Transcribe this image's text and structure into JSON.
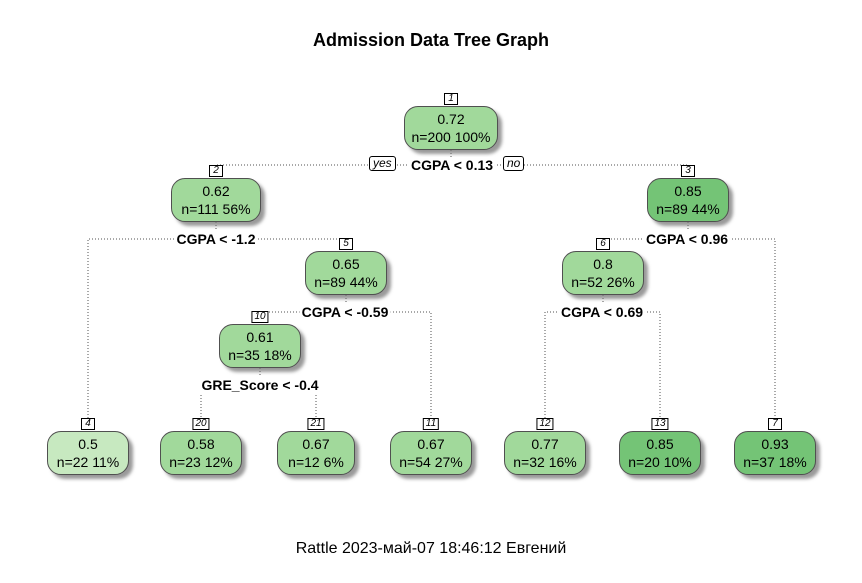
{
  "title": "Admission Data Tree Graph",
  "footer": "Rattle 2023-май-07 18:46:12 Евгений",
  "branch_labels": {
    "yes": "yes",
    "no": "no"
  },
  "colors": {
    "level1": "#c7e9c0",
    "level2": "#a1d99b",
    "level3": "#74c476",
    "edge": "#505050",
    "shadow": "#808080"
  },
  "nodes": [
    {
      "id": "1",
      "value": "0.72",
      "info": "n=200  100%",
      "fill": "#a1d99b"
    },
    {
      "id": "2",
      "value": "0.62",
      "info": "n=111  56%",
      "fill": "#a1d99b"
    },
    {
      "id": "3",
      "value": "0.85",
      "info": "n=89  44%",
      "fill": "#74c476"
    },
    {
      "id": "5",
      "value": "0.65",
      "info": "n=89  44%",
      "fill": "#a1d99b"
    },
    {
      "id": "6",
      "value": "0.8",
      "info": "n=52  26%",
      "fill": "#a1d99b"
    },
    {
      "id": "10",
      "value": "0.61",
      "info": "n=35  18%",
      "fill": "#a1d99b"
    },
    {
      "id": "4",
      "value": "0.5",
      "info": "n=22  11%",
      "fill": "#c7e9c0"
    },
    {
      "id": "20",
      "value": "0.58",
      "info": "n=23  12%",
      "fill": "#a1d99b"
    },
    {
      "id": "21",
      "value": "0.67",
      "info": "n=12  6%",
      "fill": "#a1d99b"
    },
    {
      "id": "11",
      "value": "0.67",
      "info": "n=54  27%",
      "fill": "#a1d99b"
    },
    {
      "id": "12",
      "value": "0.77",
      "info": "n=32  16%",
      "fill": "#a1d99b"
    },
    {
      "id": "13",
      "value": "0.85",
      "info": "n=20  10%",
      "fill": "#74c476"
    },
    {
      "id": "7",
      "value": "0.93",
      "info": "n=37  18%",
      "fill": "#74c476"
    }
  ],
  "splits": [
    {
      "node": "1",
      "rule": "CGPA < 0.13"
    },
    {
      "node": "2",
      "rule": "CGPA < -1.2"
    },
    {
      "node": "3",
      "rule": "CGPA < 0.96"
    },
    {
      "node": "5",
      "rule": "CGPA < -0.59"
    },
    {
      "node": "6",
      "rule": "CGPA < 0.69"
    },
    {
      "node": "10",
      "rule": "GRE_Score < -0.4"
    }
  ]
}
